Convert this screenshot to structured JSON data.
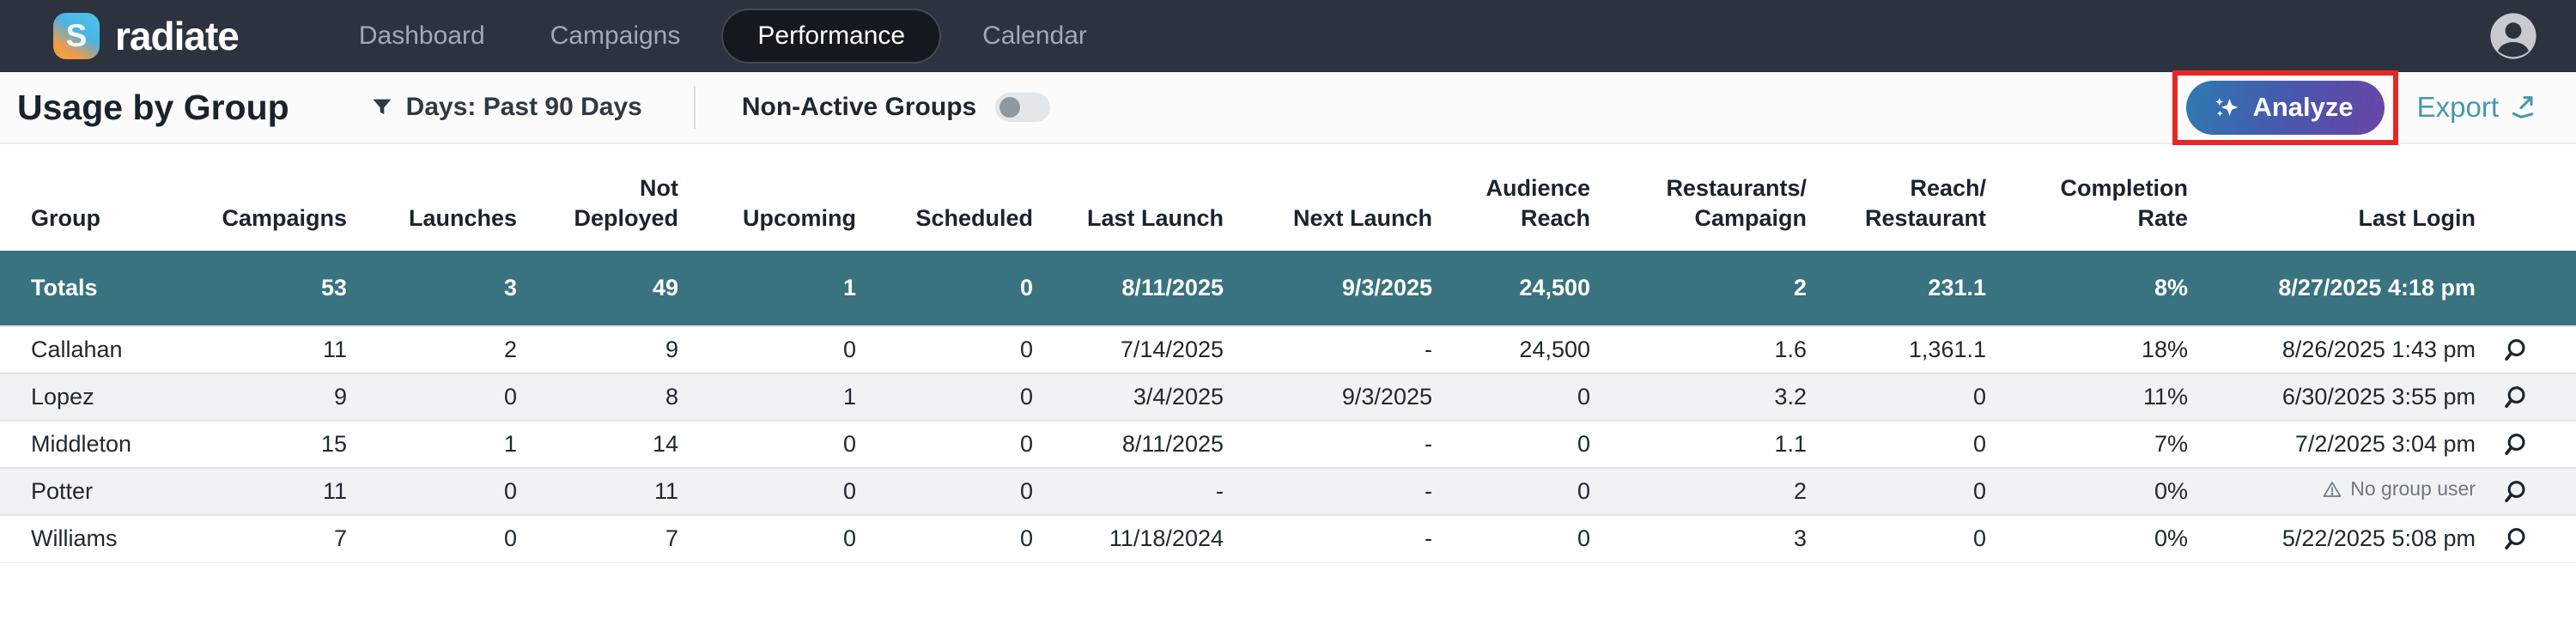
{
  "nav": {
    "logo_letter": "S",
    "brand": "radiate",
    "items": [
      {
        "label": "Dashboard",
        "active": false
      },
      {
        "label": "Campaigns",
        "active": false
      },
      {
        "label": "Performance",
        "active": true
      },
      {
        "label": "Calendar",
        "active": false
      }
    ]
  },
  "toolbar": {
    "title": "Usage by Group",
    "filter_label": "Days: Past 90 Days",
    "toggle_label": "Non-Active Groups",
    "toggle_state": "off",
    "analyze_label": "Analyze",
    "export_label": "Export"
  },
  "icons": {
    "logo": "radiate-logo-icon",
    "avatar": "user-avatar-icon",
    "filter": "funnel-icon",
    "analyze": "sparkles-icon",
    "export": "export-arrow-icon",
    "row_action": "magnifier-icon",
    "warning": "warning-triangle-icon"
  },
  "colors": {
    "nav_bg": "#2d333e",
    "nav_active_pill": "#14181f",
    "totals_row_teal": "#38737f",
    "analyze_gradient_start": "#2e7ab1",
    "analyze_gradient_end": "#6a45a6",
    "annotation_red": "#e92722",
    "export_teal": "#4997ab",
    "alt_row_gray": "#f1f2f4"
  },
  "table": {
    "columns": [
      "Group",
      "Campaigns",
      "Launches",
      "Not\nDeployed",
      "Upcoming",
      "Scheduled",
      "Last Launch",
      "Next Launch",
      "Audience\nReach",
      "Restaurants/\nCampaign",
      "Reach/\nRestaurant",
      "Completion\nRate",
      "Last Login"
    ],
    "totals": [
      "Totals",
      "53",
      "3",
      "49",
      "1",
      "0",
      "8/11/2025",
      "9/3/2025",
      "24,500",
      "2",
      "231.1",
      "8%",
      "8/27/2025 4:18 pm"
    ],
    "warning_label": "No group user",
    "rows": [
      {
        "cells": [
          "Callahan",
          "11",
          "2",
          "9",
          "0",
          "0",
          "7/14/2025",
          "-",
          "24,500",
          "1.6",
          "1,361.1",
          "18%",
          "8/26/2025 1:43 pm"
        ],
        "warning": false
      },
      {
        "cells": [
          "Lopez",
          "9",
          "0",
          "8",
          "1",
          "0",
          "3/4/2025",
          "9/3/2025",
          "0",
          "3.2",
          "0",
          "11%",
          "6/30/2025 3:55 pm"
        ],
        "warning": false
      },
      {
        "cells": [
          "Middleton",
          "15",
          "1",
          "14",
          "0",
          "0",
          "8/11/2025",
          "-",
          "0",
          "1.1",
          "0",
          "7%",
          "7/2/2025 3:04 pm"
        ],
        "warning": false
      },
      {
        "cells": [
          "Potter",
          "11",
          "0",
          "11",
          "0",
          "0",
          "-",
          "-",
          "0",
          "2",
          "0",
          "0%",
          "No group user"
        ],
        "warning": true
      },
      {
        "cells": [
          "Williams",
          "7",
          "0",
          "7",
          "0",
          "0",
          "11/18/2024",
          "-",
          "0",
          "3",
          "0",
          "0%",
          "5/22/2025 5:08 pm"
        ],
        "warning": false
      }
    ]
  }
}
